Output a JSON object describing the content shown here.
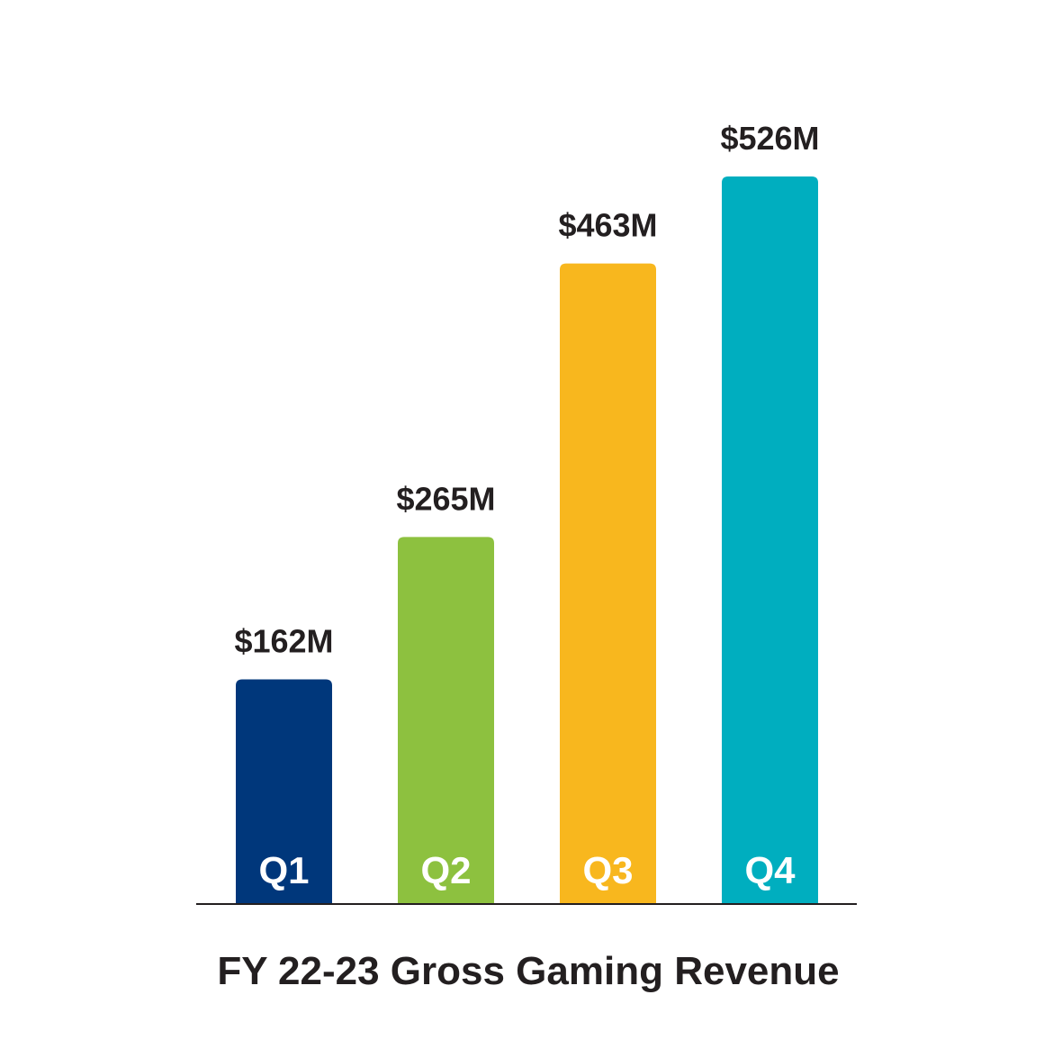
{
  "chart_data": {
    "type": "bar",
    "title": "FY 22-23 Gross Gaming Revenue",
    "xlabel": "",
    "ylabel": "",
    "categories": [
      "Q1",
      "Q2",
      "Q3",
      "Q4"
    ],
    "values": [
      162,
      265,
      463,
      526
    ],
    "value_labels": [
      "$162M",
      "$265M",
      "$463M",
      "$526M"
    ],
    "unit": "$M",
    "ylim": [
      0,
      526
    ],
    "grid": false,
    "legend": "none",
    "colors": [
      "#00377b",
      "#8dc13f",
      "#f8b71e",
      "#00aebf"
    ],
    "axis_color": "#231f20"
  }
}
